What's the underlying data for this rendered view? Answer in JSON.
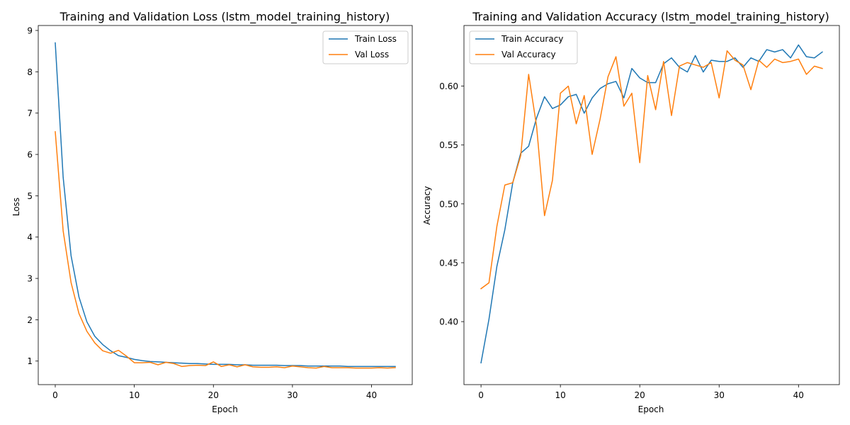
{
  "chart_data": [
    {
      "type": "line",
      "title": "Training and Validation Loss (lstm_model_training_history)",
      "xlabel": "Epoch",
      "ylabel": "Loss",
      "xlim": [
        -2.15,
        45.15
      ],
      "ylim": [
        0.43,
        9.12
      ],
      "xticks": [
        0,
        10,
        20,
        30,
        40
      ],
      "yticks": [
        1,
        2,
        3,
        4,
        5,
        6,
        7,
        8,
        9
      ],
      "grid": false,
      "legend_position": "upper right",
      "x": [
        0,
        1,
        2,
        3,
        4,
        5,
        6,
        7,
        8,
        9,
        10,
        11,
        12,
        13,
        14,
        15,
        16,
        17,
        18,
        19,
        20,
        21,
        22,
        23,
        24,
        25,
        26,
        27,
        28,
        29,
        30,
        31,
        32,
        33,
        34,
        35,
        36,
        37,
        38,
        39,
        40,
        41,
        42,
        43
      ],
      "series": [
        {
          "name": "Train Loss",
          "color": "#1f77b4",
          "values": [
            8.7,
            5.45,
            3.55,
            2.55,
            1.95,
            1.6,
            1.4,
            1.25,
            1.13,
            1.09,
            1.04,
            1.01,
            0.99,
            0.98,
            0.97,
            0.96,
            0.95,
            0.94,
            0.94,
            0.93,
            0.92,
            0.92,
            0.92,
            0.91,
            0.91,
            0.9,
            0.9,
            0.9,
            0.9,
            0.89,
            0.89,
            0.89,
            0.88,
            0.88,
            0.88,
            0.88,
            0.88,
            0.87,
            0.87,
            0.87,
            0.87,
            0.87,
            0.87,
            0.87
          ]
        },
        {
          "name": "Val Loss",
          "color": "#ff7f0e",
          "values": [
            6.55,
            4.15,
            2.9,
            2.15,
            1.72,
            1.44,
            1.25,
            1.19,
            1.26,
            1.12,
            0.96,
            0.96,
            0.97,
            0.91,
            0.97,
            0.94,
            0.87,
            0.89,
            0.9,
            0.89,
            0.98,
            0.87,
            0.91,
            0.86,
            0.91,
            0.86,
            0.85,
            0.85,
            0.86,
            0.84,
            0.88,
            0.86,
            0.84,
            0.83,
            0.87,
            0.84,
            0.84,
            0.84,
            0.83,
            0.83,
            0.83,
            0.84,
            0.83,
            0.84
          ]
        }
      ]
    },
    {
      "type": "line",
      "title": "Training and Validation Accuracy (lstm_model_training_history)",
      "xlabel": "Epoch",
      "ylabel": "Accuracy",
      "xlim": [
        -2.15,
        45.15
      ],
      "ylim": [
        0.3465,
        0.6515
      ],
      "xticks": [
        0,
        10,
        20,
        30,
        40
      ],
      "yticks": [
        0.4,
        0.45,
        0.5,
        0.55,
        0.6
      ],
      "yticklabels": [
        "0.40",
        "0.45",
        "0.50",
        "0.55",
        "0.60"
      ],
      "grid": false,
      "legend_position": "upper left",
      "x": [
        0,
        1,
        2,
        3,
        4,
        5,
        6,
        7,
        8,
        9,
        10,
        11,
        12,
        13,
        14,
        15,
        16,
        17,
        18,
        19,
        20,
        21,
        22,
        23,
        24,
        25,
        26,
        27,
        28,
        29,
        30,
        31,
        32,
        33,
        34,
        35,
        36,
        37,
        38,
        39,
        40,
        41,
        42,
        43
      ],
      "series": [
        {
          "name": "Train Accuracy",
          "color": "#1f77b4",
          "values": [
            0.365,
            0.402,
            0.447,
            0.478,
            0.518,
            0.543,
            0.549,
            0.573,
            0.591,
            0.581,
            0.584,
            0.591,
            0.593,
            0.577,
            0.59,
            0.598,
            0.602,
            0.604,
            0.59,
            0.615,
            0.607,
            0.603,
            0.603,
            0.619,
            0.624,
            0.616,
            0.612,
            0.626,
            0.612,
            0.622,
            0.621,
            0.621,
            0.624,
            0.616,
            0.624,
            0.621,
            0.631,
            0.629,
            0.631,
            0.624,
            0.635,
            0.625,
            0.624,
            0.629
          ]
        },
        {
          "name": "Val Accuracy",
          "color": "#ff7f0e",
          "values": [
            0.428,
            0.433,
            0.481,
            0.516,
            0.518,
            0.541,
            0.61,
            0.566,
            0.49,
            0.52,
            0.594,
            0.6,
            0.568,
            0.592,
            0.542,
            0.572,
            0.608,
            0.625,
            0.583,
            0.594,
            0.535,
            0.609,
            0.58,
            0.621,
            0.575,
            0.617,
            0.62,
            0.618,
            0.616,
            0.62,
            0.59,
            0.63,
            0.622,
            0.618,
            0.597,
            0.622,
            0.616,
            0.623,
            0.62,
            0.621,
            0.623,
            0.61,
            0.617,
            0.615
          ]
        }
      ]
    }
  ]
}
